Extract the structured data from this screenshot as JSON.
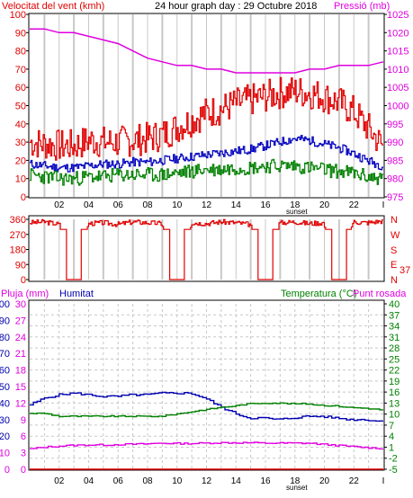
{
  "wind_chart": {
    "title": "24 hour graph day : 29 Octubre 2018",
    "left_label": "Velocitat del vent (kmh)",
    "right_label": "Pressió (mb)",
    "x_ticks": [
      "02",
      "04",
      "06",
      "08",
      "10",
      "12",
      "14",
      "16",
      "18",
      "20",
      "22",
      "I"
    ],
    "sunset_label": "sunset"
  },
  "dir_chart": {
    "compass_labels": [
      "N",
      "W",
      "S",
      "E",
      "N"
    ],
    "current_value": "37"
  },
  "temp_chart": {
    "left_label_1": "Pluja (mm)",
    "left_label_2": "Humitat",
    "right_label_1": "Temperatura (°C)",
    "right_label_2": "Punt rosada",
    "x_ticks": [
      "02",
      "04",
      "06",
      "08",
      "10",
      "12",
      "14",
      "16",
      "18",
      "20",
      "22",
      "I"
    ],
    "sunset_label": "sunset"
  },
  "colors": {
    "wind_red": "#e00000",
    "wind_blue": "#0000c0",
    "wind_green": "#008000",
    "pressure_magenta": "#e000e0",
    "temp_green": "#008000",
    "dewpoint_magenta": "#e000e0",
    "humidity_blue": "#0000b0",
    "grid": "#c8c8c8"
  },
  "chart_data": [
    {
      "type": "line",
      "x": [
        0,
        1,
        2,
        3,
        4,
        5,
        6,
        7,
        8,
        9,
        10,
        11,
        12,
        13,
        14,
        15,
        16,
        17,
        18,
        19,
        20,
        21,
        22,
        23,
        24
      ],
      "x_tick_labels": [
        "02",
        "04",
        "06",
        "08",
        "10",
        "12",
        "14",
        "16",
        "18",
        "20",
        "22",
        "I"
      ],
      "y_left_range": [
        0,
        100
      ],
      "y_left_ticks": [
        0,
        10,
        20,
        30,
        40,
        50,
        60,
        70,
        80,
        90,
        100
      ],
      "y_right_range": [
        975,
        1025
      ],
      "y_right_ticks": [
        975,
        980,
        985,
        990,
        995,
        1000,
        1005,
        1010,
        1015,
        1020,
        1025
      ],
      "series": [
        {
          "values": [
            30,
            29,
            28,
            28,
            31,
            30,
            30,
            31,
            32,
            34,
            38,
            42,
            46,
            48,
            51,
            53,
            55,
            57,
            58,
            57,
            55,
            52,
            47,
            38,
            28
          ]
        },
        {
          "values": [
            18,
            17,
            16,
            16,
            17,
            18,
            18,
            19,
            19,
            20,
            21,
            22,
            23,
            24,
            25,
            26,
            28,
            30,
            32,
            31,
            29,
            27,
            24,
            20,
            17
          ]
        },
        {
          "values": [
            12,
            11,
            10,
            10,
            11,
            11,
            12,
            12,
            12,
            12,
            13,
            14,
            15,
            15,
            16,
            16,
            17,
            17,
            17,
            16,
            15,
            14,
            13,
            11,
            10
          ]
        },
        {
          "values": [
            1021,
            1021,
            1020,
            1020,
            1019,
            1018,
            1017,
            1015,
            1013,
            1012,
            1011,
            1011,
            1010,
            1010,
            1009,
            1009,
            1009,
            1009,
            1009,
            1010,
            1010,
            1011,
            1011,
            1011,
            1012
          ]
        }
      ]
    },
    {
      "type": "line",
      "y_range": [
        0,
        360
      ],
      "y_ticks": [
        0,
        90,
        180,
        270,
        360
      ],
      "x_tick_labels": [
        "02",
        "04",
        "06",
        "08",
        "10",
        "12",
        "14",
        "16",
        "18",
        "20",
        "22",
        "I"
      ],
      "series": [
        {
          "values": [
            340,
            345,
            330,
            0,
            335,
            340,
            330,
            345,
            340,
            335,
            0,
            340,
            335,
            345,
            340,
            330,
            0,
            340,
            345,
            335,
            340,
            0,
            345,
            340,
            350
          ]
        }
      ]
    },
    {
      "type": "line",
      "x": [
        0,
        1,
        2,
        3,
        4,
        5,
        6,
        7,
        8,
        9,
        10,
        11,
        12,
        13,
        14,
        15,
        16,
        17,
        18,
        19,
        20,
        21,
        22,
        23,
        24
      ],
      "x_tick_labels": [
        "02",
        "04",
        "06",
        "08",
        "10",
        "12",
        "14",
        "16",
        "18",
        "20",
        "22",
        "I"
      ],
      "y_left_range": [
        0,
        100
      ],
      "y_left_ticks": [
        0,
        10,
        20,
        30,
        40,
        50,
        60,
        70,
        80,
        90,
        100
      ],
      "y_right_range": [
        -5,
        40
      ],
      "y_right_ticks": [
        -5,
        -2,
        1,
        4,
        7,
        10,
        13,
        16,
        19,
        22,
        25,
        28,
        31,
        34,
        37,
        40
      ],
      "series": [
        {
          "values": [
            39,
            43,
            45,
            46,
            45,
            44,
            44,
            45,
            45,
            46,
            46,
            46,
            43,
            38,
            34,
            31,
            31,
            30,
            31,
            32,
            32,
            31,
            30,
            30,
            29
          ]
        },
        {
          "values": [
            10.2,
            10.2,
            9.4,
            9.4,
            9.4,
            9.4,
            9.4,
            9.4,
            9.4,
            9.4,
            10.0,
            10.6,
            11.2,
            11.8,
            12.2,
            12.8,
            13.0,
            13.0,
            12.8,
            12.8,
            12.4,
            12.2,
            11.8,
            11.6,
            11.2
          ]
        },
        {
          "values": [
            0.5,
            1.0,
            1.3,
            1.5,
            1.6,
            1.6,
            1.7,
            1.8,
            1.9,
            2.1,
            2.0,
            2.0,
            2.1,
            2.2,
            2.2,
            2.2,
            2.1,
            2.1,
            2.1,
            2.1,
            1.8,
            1.5,
            1.2,
            0.9,
            0.7
          ]
        },
        {
          "values": [
            0,
            0,
            0,
            0,
            0,
            0,
            0,
            0,
            0,
            0,
            0,
            0,
            0,
            0,
            0,
            0,
            0,
            0,
            0,
            0,
            0,
            0,
            0,
            0,
            0
          ]
        }
      ]
    }
  ]
}
